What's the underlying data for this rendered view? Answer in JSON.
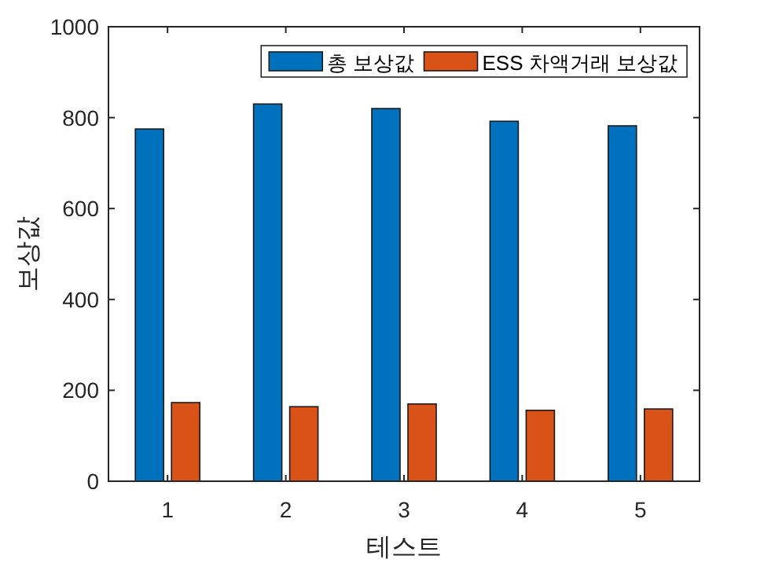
{
  "chart_data": {
    "type": "bar",
    "xlabel": "테스트",
    "ylabel": "보상값",
    "categories": [
      "1",
      "2",
      "3",
      "4",
      "5"
    ],
    "series": [
      {
        "name": "총 보상값",
        "color": "#0072bd",
        "values": [
          775,
          830,
          820,
          792,
          782
        ]
      },
      {
        "name": "ESS 차액거래 보상값",
        "color": "#d95319",
        "values": [
          173,
          164,
          170,
          156,
          159
        ]
      }
    ],
    "ylim": [
      0,
      1000
    ],
    "yticks": [
      0,
      200,
      400,
      600,
      800,
      1000
    ],
    "legend": "top right"
  }
}
